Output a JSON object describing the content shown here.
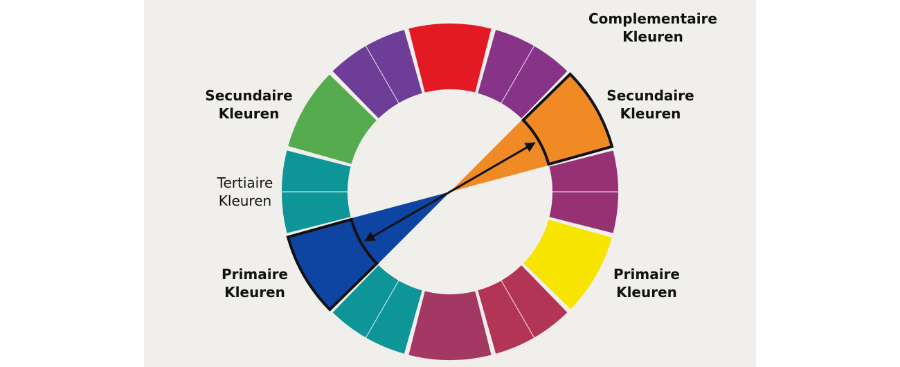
{
  "colors": {
    "background": "#f1efec",
    "outline": "#111111",
    "red": "#e31a23",
    "violet": "#6e3d98",
    "purple": "#873388",
    "orange": "#f08a25",
    "magenta": "#963274",
    "yellow": "#f7e400",
    "crimson": "#b33555",
    "rose": "#a33862",
    "teal": "#0e9598",
    "blue": "#0f45a2",
    "green": "#55ab4d"
  },
  "labels": {
    "complementary": {
      "line1": "Complementaire",
      "line2": "Kleuren"
    },
    "secondary_right": {
      "line1": "Secundaire",
      "line2": "Kleuren"
    },
    "primary_right": {
      "line1": "Primaire",
      "line2": "Kleuren"
    },
    "secondary_left": {
      "line1": "Secundaire",
      "line2": "Kleuren"
    },
    "tertiary_left": {
      "line1": "Tertiaire",
      "line2": "Kleuren"
    },
    "primary_left": {
      "line1": "Primaire",
      "line2": "Kleuren"
    }
  },
  "wheel": {
    "segments": [
      {
        "name": "red",
        "color": "red",
        "divided": false
      },
      {
        "name": "red-violet",
        "color": "purple",
        "divided": true
      },
      {
        "name": "orange",
        "color": "orange",
        "divided": false,
        "highlighted": true
      },
      {
        "name": "red-purple",
        "color": "magenta",
        "divided": true
      },
      {
        "name": "yellow",
        "color": "yellow",
        "divided": false
      },
      {
        "name": "crimson",
        "color": "crimson",
        "divided": true
      },
      {
        "name": "rose",
        "color": "rose",
        "divided": false
      },
      {
        "name": "blue-green",
        "color": "teal",
        "divided": true
      },
      {
        "name": "blue",
        "color": "blue",
        "divided": false,
        "highlighted": true
      },
      {
        "name": "teal",
        "color": "teal",
        "divided": true
      },
      {
        "name": "green",
        "color": "green",
        "divided": false
      },
      {
        "name": "blue-violet",
        "color": "violet",
        "divided": true
      }
    ],
    "complementary_pair": [
      "orange",
      "blue"
    ]
  }
}
